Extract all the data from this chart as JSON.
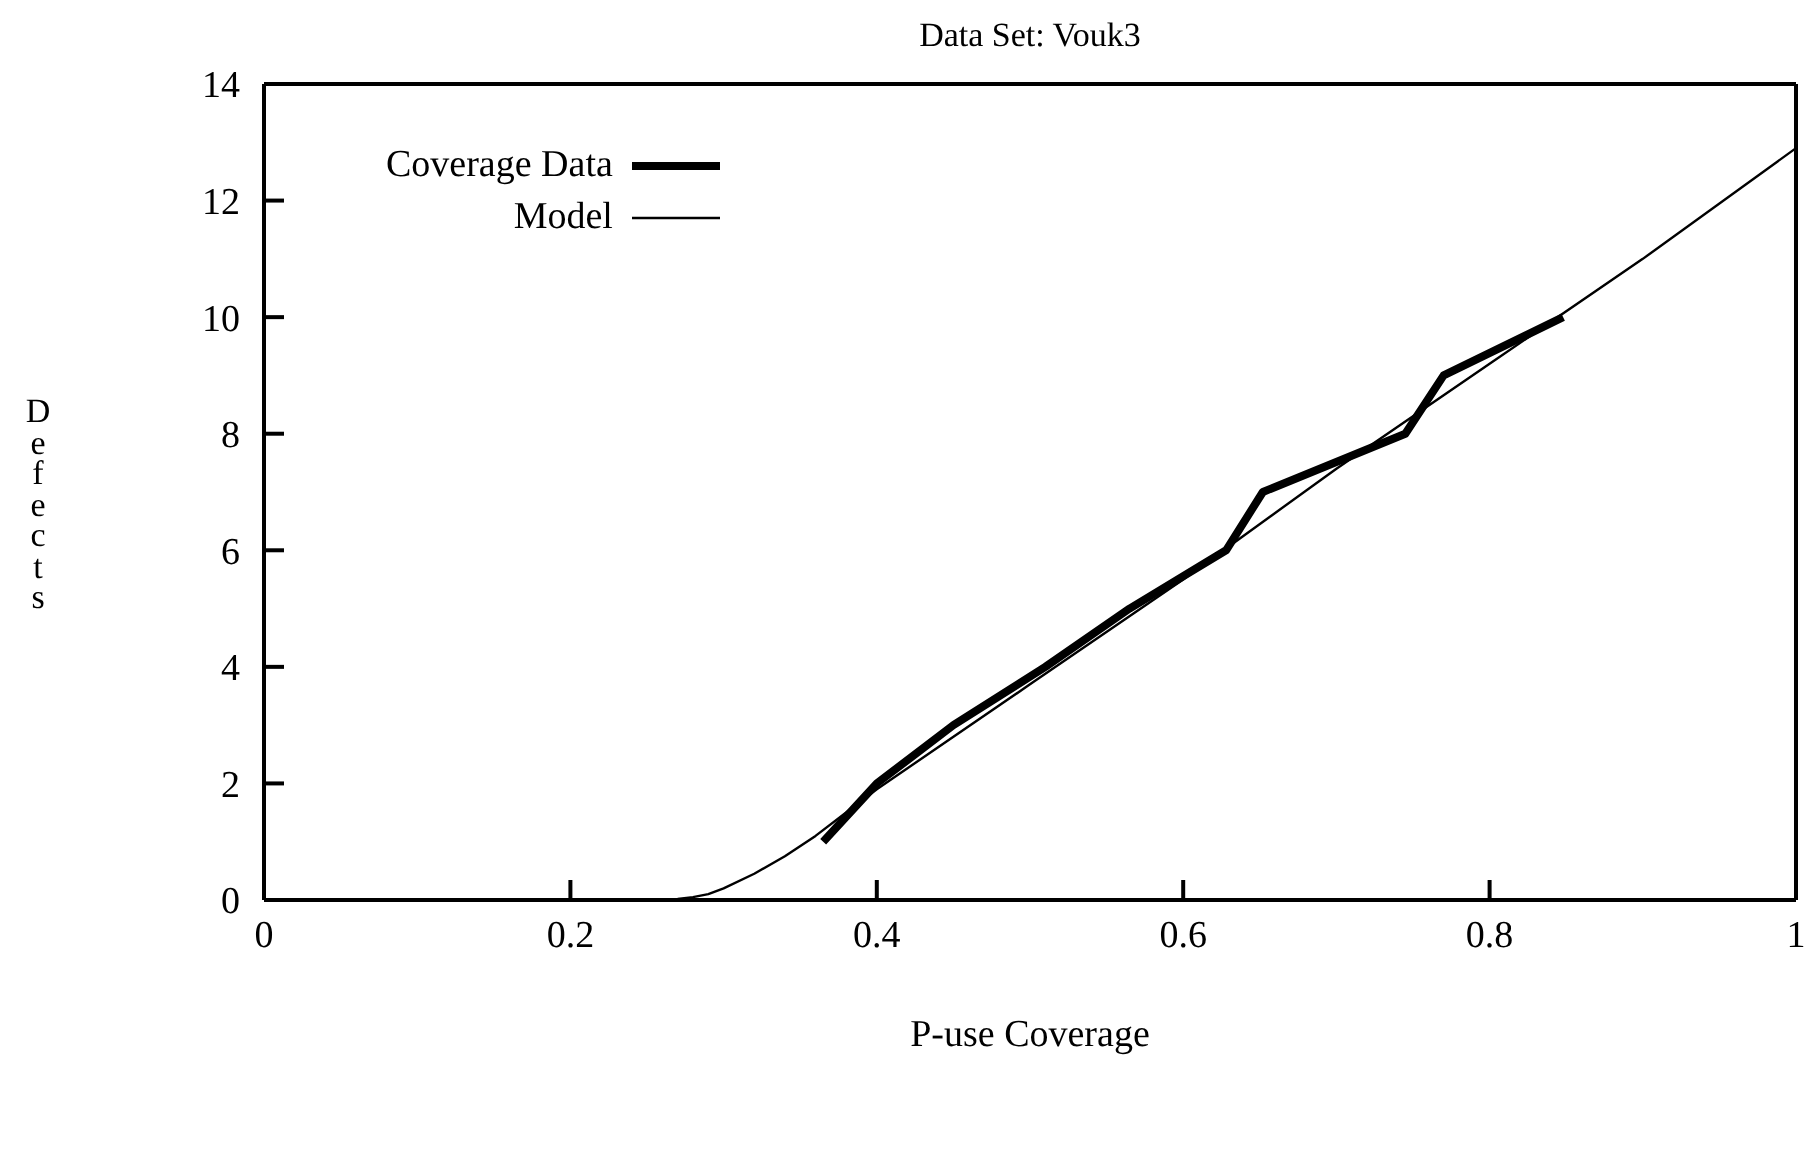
{
  "chart_data": {
    "type": "line",
    "title": "Data Set:  Vouk3",
    "xlabel": "P-use Coverage",
    "ylabel": "Defects",
    "xlim": [
      0,
      1
    ],
    "xticks": [
      0,
      0.2,
      0.4,
      0.6,
      0.8,
      1
    ],
    "ylim": [
      0,
      14
    ],
    "yticks": [
      0,
      2,
      4,
      6,
      8,
      10,
      12,
      14
    ],
    "legend": "top left",
    "marker": "none",
    "series": [
      {
        "name": "Coverage Data",
        "color": "#000000",
        "x": [
          0.365,
          0.4,
          0.45,
          0.51,
          0.565,
          0.628,
          0.652,
          0.745,
          0.77,
          0.848
        ],
        "values": [
          1,
          2,
          3,
          4,
          5,
          6,
          7,
          8,
          9,
          10
        ]
      },
      {
        "name": "Model",
        "color": "#000000",
        "x": [
          0.26,
          0.27,
          0.28,
          0.29,
          0.3,
          0.32,
          0.34,
          0.36,
          0.38,
          0.4,
          0.5,
          0.6,
          0.7,
          0.8,
          0.9,
          1.0
        ],
        "values": [
          0,
          0.02,
          0.05,
          0.1,
          0.2,
          0.45,
          0.75,
          1.1,
          1.5,
          1.9,
          3.7,
          5.5,
          7.4,
          9.2,
          11.0,
          12.9
        ]
      }
    ]
  }
}
